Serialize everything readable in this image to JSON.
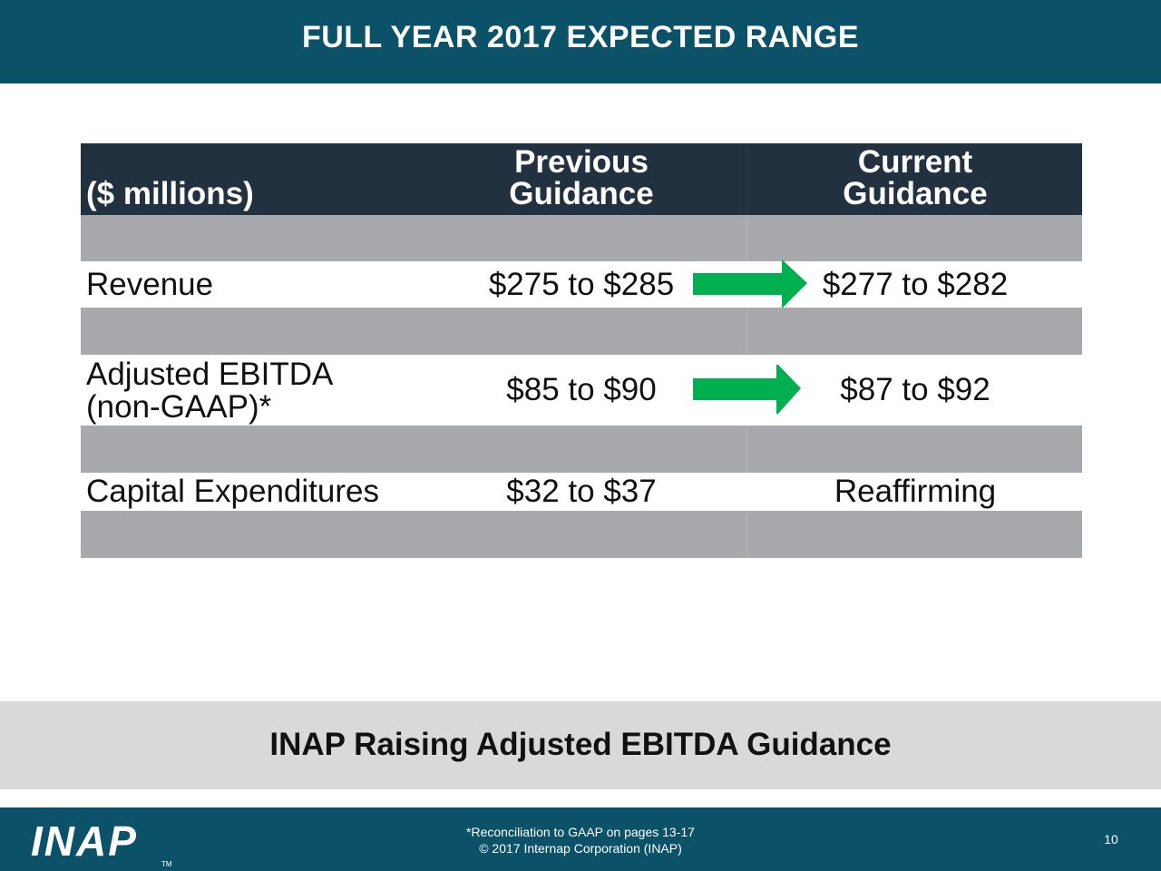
{
  "header": {
    "title": "FULL YEAR 2017 EXPECTED RANGE"
  },
  "table": {
    "units_label": "($ millions)",
    "col_previous": [
      "Previous",
      "Guidance"
    ],
    "col_current": [
      "Current",
      "Guidance"
    ],
    "rows": [
      {
        "label": "Revenue",
        "previous": "$275 to $285",
        "current": "$277 to $282",
        "arrow": "right-arrow-icon"
      },
      {
        "label": [
          "Adjusted EBITDA",
          "(non-GAAP)*"
        ],
        "previous": "$85 to $90",
        "current": "$87 to $92",
        "arrow": "right-arrow-icon"
      },
      {
        "label": "Capital Expenditures",
        "previous": "$32 to $37",
        "current": "Reaffirming"
      }
    ]
  },
  "banner": {
    "text": "INAP Raising Adjusted EBITDA Guidance"
  },
  "footer": {
    "logo": "INAP",
    "logo_tm": "TM",
    "note": "*Reconciliation to GAAP on pages 13-17",
    "copyright": "© 2017 Internap Corporation (INAP)",
    "page_number": "10"
  },
  "colors": {
    "title_bar": "#0b5268",
    "table_header": "#21313f",
    "spacer_row": "#a8a9ad",
    "arrow": "#00b050",
    "banner": "#d9d9d9"
  }
}
